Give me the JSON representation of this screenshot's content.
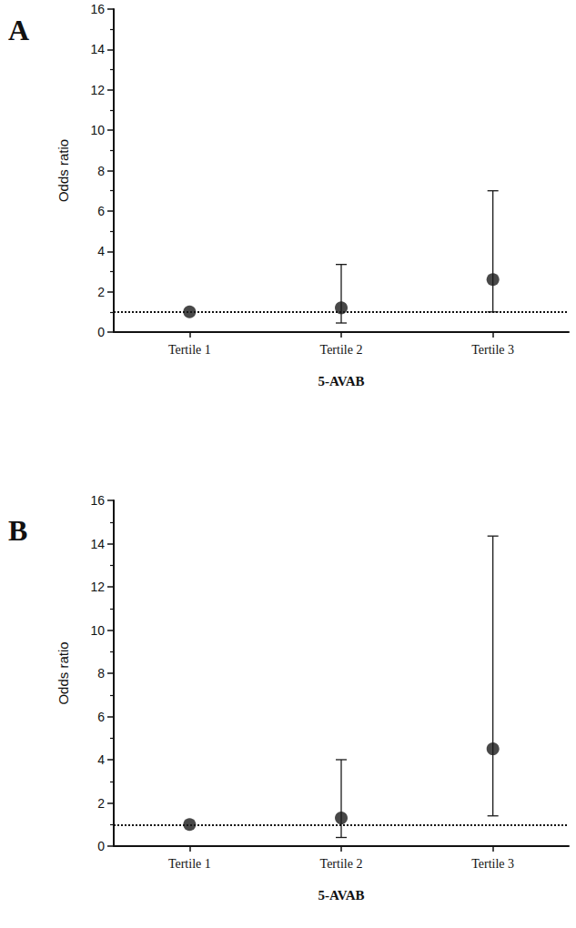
{
  "chart_data": [
    {
      "type": "scatter",
      "panel_label": "A",
      "categories": [
        "Tertile 1",
        "Tertile 2",
        "Tertile 3"
      ],
      "values": [
        1,
        1.2,
        2.6
      ],
      "ci_low": [
        null,
        0.45,
        1.0
      ],
      "ci_high": [
        null,
        3.35,
        7.0
      ],
      "reference_line": 1,
      "x_label": "5-AVAB",
      "y_label": "Odds ratio",
      "ylim": [
        0,
        16
      ],
      "yticks": [
        0,
        2,
        4,
        6,
        8,
        10,
        12,
        14,
        16
      ],
      "color": "#1a1a1a",
      "marker": "circle",
      "grid": false
    },
    {
      "type": "scatter",
      "panel_label": "B",
      "categories": [
        "Tertile 1",
        "Tertile 2",
        "Tertile 3"
      ],
      "values": [
        1,
        1.3,
        4.5
      ],
      "ci_low": [
        null,
        0.4,
        1.4
      ],
      "ci_high": [
        null,
        4.0,
        14.35
      ],
      "reference_line": 1,
      "x_label": "5-AVAB",
      "y_label": "Odds ratio",
      "ylim": [
        0,
        16
      ],
      "yticks": [
        0,
        2,
        4,
        6,
        8,
        10,
        12,
        14,
        16
      ],
      "color": "#1a1a1a",
      "marker": "circle",
      "grid": false
    }
  ]
}
